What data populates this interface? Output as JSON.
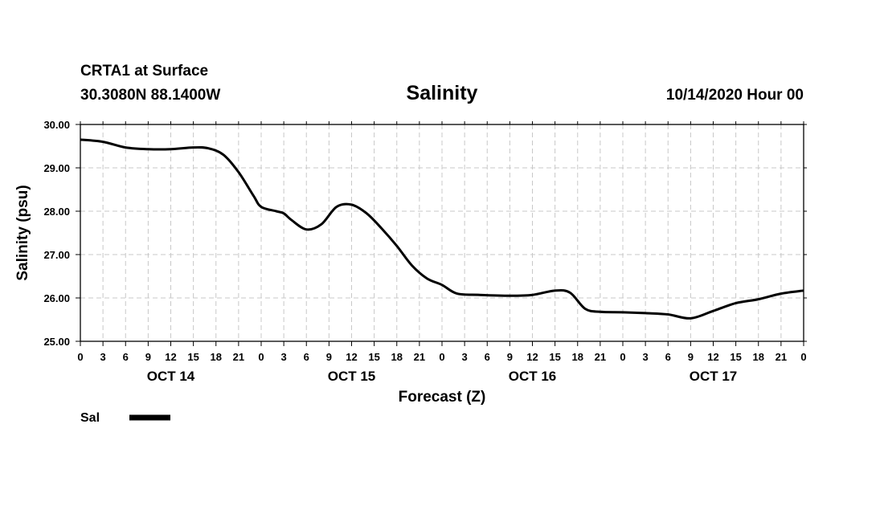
{
  "header": {
    "station": "CRTA1 at Surface",
    "coords": "30.3080N 88.1400W",
    "title": "Salinity",
    "datetime": "10/14/2020 Hour 00"
  },
  "legend": {
    "label": "Sal",
    "color": "#000000"
  },
  "chart_data": {
    "type": "line",
    "title": "Salinity",
    "xlabel": "Forecast (Z)",
    "ylabel": "Salinity (psu)",
    "xlim": [
      0,
      96
    ],
    "ylim": [
      25,
      30
    ],
    "grid": true,
    "x_tick_labels": [
      "0",
      "3",
      "6",
      "9",
      "12",
      "15",
      "18",
      "21",
      "0",
      "3",
      "6",
      "9",
      "12",
      "15",
      "18",
      "21",
      "0",
      "3",
      "6",
      "9",
      "12",
      "15",
      "18",
      "21",
      "0",
      "3",
      "6",
      "9",
      "12",
      "15",
      "18",
      "21",
      "0"
    ],
    "y_tick_labels": [
      "25.00",
      "26.00",
      "27.00",
      "28.00",
      "29.00",
      "30.00"
    ],
    "date_labels": [
      {
        "label": "OCT 14",
        "hour": 12
      },
      {
        "label": "OCT 15",
        "hour": 36
      },
      {
        "label": "OCT 16",
        "hour": 60
      },
      {
        "label": "OCT 17",
        "hour": 84
      }
    ],
    "series": [
      {
        "name": "Sal",
        "x": [
          0,
          3,
          6,
          9,
          12,
          15,
          17,
          19,
          21,
          23,
          24,
          26,
          27,
          28,
          30,
          32,
          34,
          36,
          38,
          40,
          42,
          44,
          46,
          48,
          50,
          53,
          57,
          60,
          63,
          65,
          67,
          69,
          72,
          75,
          78,
          81,
          84,
          87,
          90,
          93,
          96
        ],
        "y": [
          29.65,
          29.6,
          29.47,
          29.43,
          29.43,
          29.47,
          29.45,
          29.3,
          28.9,
          28.35,
          28.1,
          28.0,
          27.95,
          27.8,
          27.58,
          27.7,
          28.1,
          28.15,
          27.95,
          27.6,
          27.2,
          26.75,
          26.45,
          26.3,
          26.1,
          26.07,
          26.05,
          26.07,
          26.17,
          26.12,
          25.75,
          25.68,
          25.67,
          25.65,
          25.62,
          25.53,
          25.7,
          25.88,
          25.97,
          26.1,
          26.17
        ]
      }
    ]
  }
}
